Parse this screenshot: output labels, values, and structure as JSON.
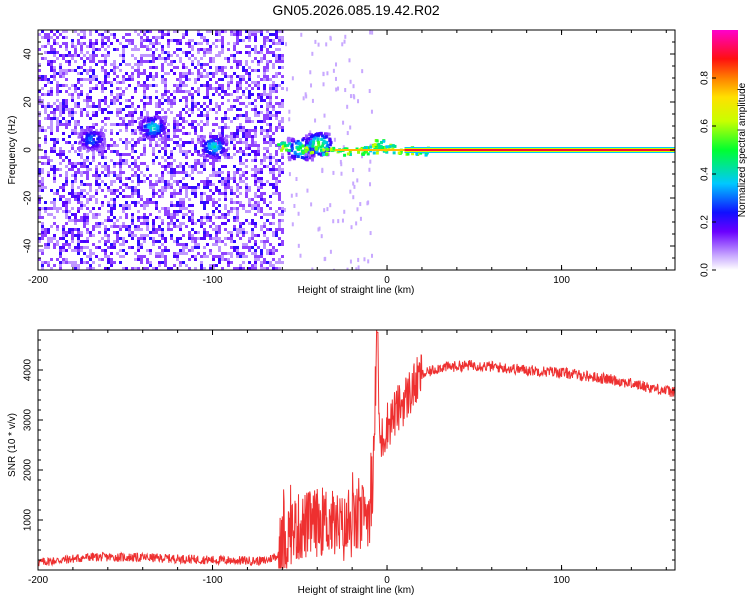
{
  "title": "GN05.2026.085.19.42.R02",
  "colors": {
    "snr_line": "#ee3030",
    "frame": "#000000"
  },
  "chart_data": [
    {
      "type": "heatmap",
      "name_panel": "spectrogram",
      "xlabel": "Height of straight line (km)",
      "ylabel": "Frequency (Hz)",
      "xlim": [
        -200,
        165
      ],
      "ylim": [
        -50,
        50
      ],
      "xticks": [
        -200,
        -100,
        0,
        100
      ],
      "yticks": [
        -40,
        -20,
        0,
        20,
        40
      ],
      "colorbar": {
        "label": "Normalized spectral amplitude",
        "range": [
          0,
          1
        ],
        "ticks": [
          "0.0",
          "0.2",
          "0.4",
          "0.6",
          "0.8"
        ],
        "tick_values": [
          0,
          0.2,
          0.4,
          0.6,
          0.8
        ]
      },
      "features": {
        "noise_region_x": [
          -200,
          -60
        ],
        "tone_start_x": -60,
        "tone_frequency_hz": 0,
        "clusters": [
          {
            "x": -170,
            "y": 5,
            "amp": 0.35
          },
          {
            "x": -135,
            "y": 10,
            "amp": 0.45
          },
          {
            "x": -100,
            "y": 2,
            "amp": 0.45
          },
          {
            "x": -50,
            "y": 1,
            "amp": 0.55
          },
          {
            "x": -40,
            "y": 3,
            "amp": 0.6
          }
        ]
      }
    },
    {
      "type": "line",
      "name_panel": "snr",
      "xlabel": "Height of straight line (km)",
      "ylabel": "SNR (10 * v/v)",
      "xlim": [
        -200,
        165
      ],
      "ylim": [
        0,
        4800
      ],
      "xticks": [
        -200,
        -100,
        0,
        100
      ],
      "yticks": [
        1000,
        2000,
        3000,
        4000
      ],
      "profile": {
        "x": [
          -200,
          -170,
          -140,
          -100,
          -70,
          -62,
          -55,
          -45,
          -35,
          -25,
          -15,
          -8,
          -6,
          -4,
          0,
          10,
          20,
          30,
          50,
          80,
          100,
          130,
          165
        ],
        "y": [
          150,
          260,
          250,
          200,
          180,
          300,
          800,
          900,
          1000,
          800,
          1000,
          1300,
          4700,
          2500,
          2900,
          3400,
          3900,
          4050,
          4100,
          4000,
          3950,
          3800,
          3550
        ]
      }
    }
  ]
}
